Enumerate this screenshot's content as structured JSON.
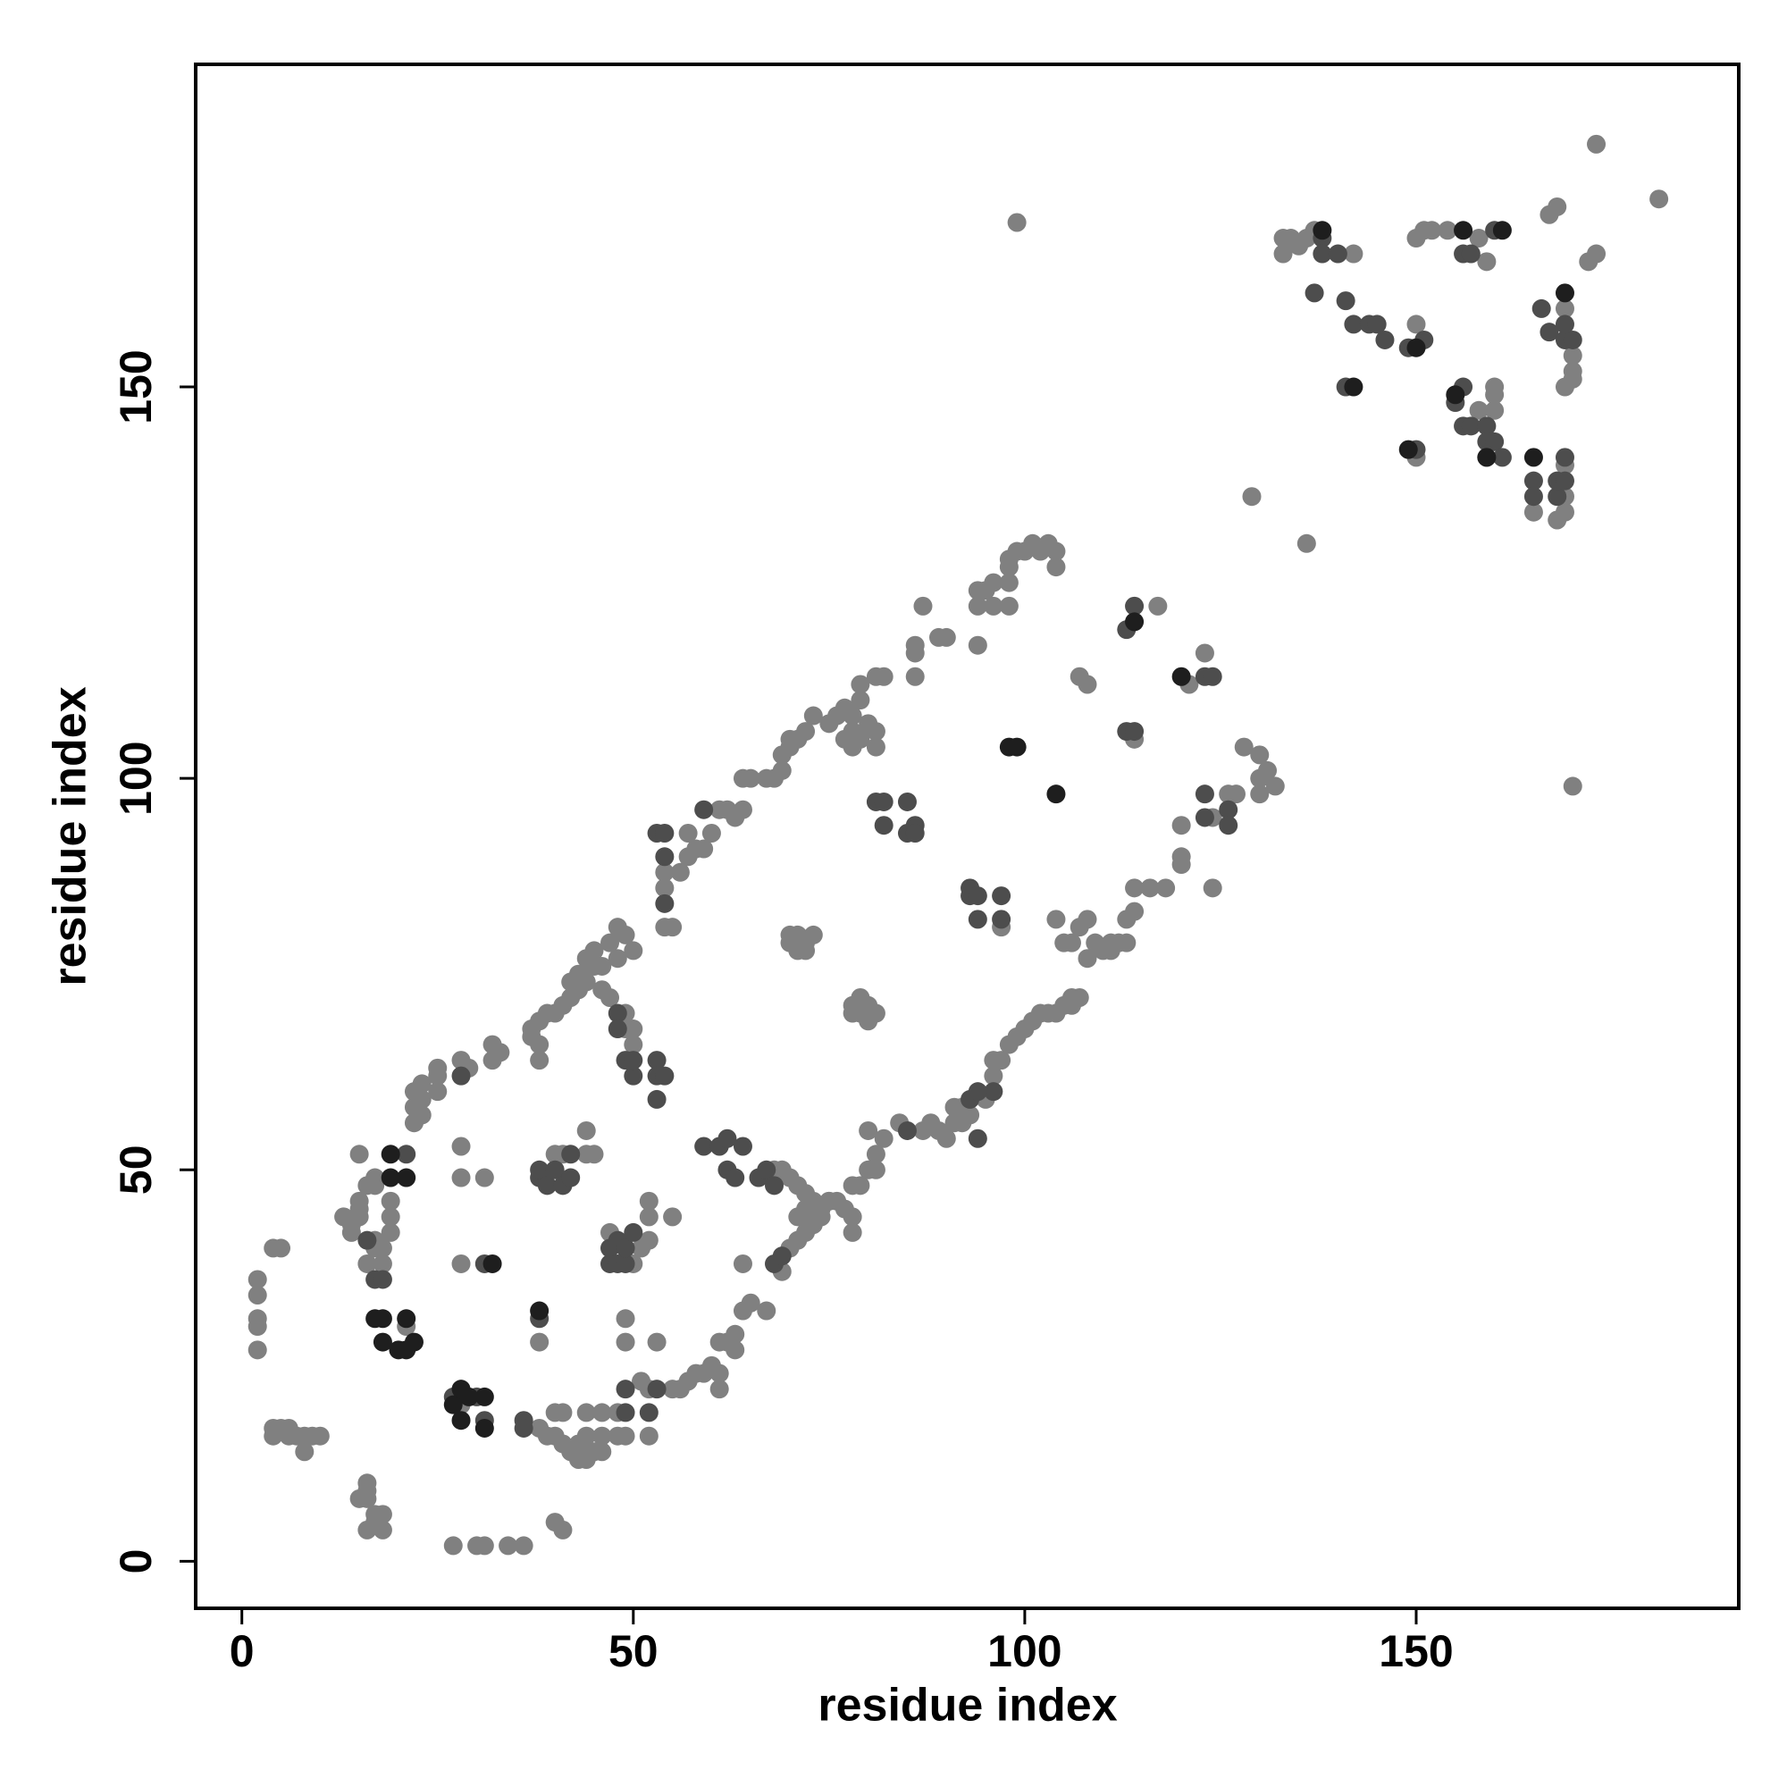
{
  "chart_data": {
    "type": "scatter",
    "xlabel": "residue index",
    "ylabel": "residue index",
    "xlim": [
      -5.9,
      191.2
    ],
    "ylim": [
      -6,
      191.2
    ],
    "xticks": [
      0,
      50,
      100,
      150
    ],
    "yticks": [
      0,
      50,
      100,
      150
    ],
    "series": [
      {
        "color": "#808080",
        "x": [
          2,
          2,
          2,
          2,
          2,
          4,
          5,
          4,
          4,
          5,
          6,
          6,
          7,
          8,
          8,
          9,
          10,
          15,
          16,
          16,
          16,
          16,
          17,
          17,
          18,
          18,
          27,
          30,
          31,
          34,
          36,
          40,
          41,
          13,
          14,
          14,
          15,
          15,
          15,
          16,
          17,
          17,
          18,
          18,
          19,
          19,
          19,
          17,
          16,
          17,
          15,
          21,
          22,
          22,
          22,
          23,
          23,
          23,
          25,
          25,
          25,
          28,
          29,
          32,
          32,
          33,
          28,
          28,
          31,
          28,
          28,
          38,
          39,
          40,
          40,
          41,
          41,
          42,
          43,
          43,
          44,
          44,
          44,
          45,
          46,
          46,
          46,
          48,
          48,
          49,
          52,
          52,
          53,
          51,
          38,
          40,
          41,
          44,
          45,
          44,
          49,
          49,
          47,
          50,
          51,
          52,
          52,
          52,
          55,
          37,
          37,
          38,
          38,
          38,
          39,
          40,
          41,
          42,
          42,
          43,
          43,
          44,
          44,
          45,
          45,
          46,
          46,
          47,
          48,
          48,
          49,
          50,
          47,
          49,
          49,
          50,
          50,
          54,
          54,
          55,
          54,
          56,
          57,
          57,
          58,
          59,
          60,
          61,
          62,
          63,
          64,
          64,
          65,
          67,
          68,
          69,
          69,
          70,
          70,
          71,
          72,
          55,
          56,
          57,
          58,
          59,
          60,
          61,
          61,
          61,
          62,
          63,
          63,
          64,
          65,
          67,
          64,
          69,
          70,
          71,
          72,
          73,
          74,
          74,
          75,
          76,
          77,
          78,
          78,
          78,
          79,
          80,
          81,
          81,
          80,
          68,
          69,
          70,
          71,
          72,
          71,
          72,
          73,
          75,
          70,
          71,
          71,
          72,
          73,
          72,
          70,
          78,
          79,
          79,
          80,
          80,
          81,
          78,
          73,
          75,
          76,
          77,
          78,
          78,
          79,
          79,
          80,
          81,
          82,
          81,
          81,
          86,
          86,
          86,
          87,
          89,
          90,
          94,
          94,
          94,
          95,
          96,
          96,
          98,
          98,
          98,
          99,
          100,
          101,
          102,
          103,
          104,
          104,
          98,
          77,
          78,
          79,
          87,
          88,
          89,
          90,
          91,
          91,
          92,
          92,
          93,
          95,
          96,
          96,
          97,
          98,
          99,
          100,
          101,
          102,
          103,
          104,
          105,
          106,
          106,
          107,
          84,
          82,
          97,
          104,
          105,
          106,
          107,
          108,
          109,
          108,
          110,
          111,
          111,
          112,
          113,
          114,
          114,
          113,
          107,
          108,
          117,
          114,
          121,
          123,
          116,
          118,
          120,
          120,
          120,
          124,
          124,
          126,
          127,
          128,
          130,
          130,
          130,
          131,
          132,
          129,
          136,
          99,
          170,
          173,
          181,
          133,
          133,
          134,
          135,
          136,
          137,
          142,
          150,
          150,
          151,
          152,
          154,
          158,
          159,
          158,
          160,
          160,
          160,
          159,
          165,
          169,
          169,
          169,
          168,
          169,
          170,
          170,
          170,
          169,
          167,
          168,
          172,
          173,
          150
        ],
        "y": [
          27,
          30,
          31,
          34,
          36,
          40,
          40,
          16,
          17,
          17,
          16,
          17,
          16,
          14,
          16,
          16,
          16,
          8,
          8,
          9,
          10,
          4,
          5,
          6,
          4,
          6,
          2,
          2,
          2,
          2,
          2,
          5,
          4,
          44,
          43,
          42,
          46,
          45,
          44,
          38,
          41,
          40,
          38,
          40,
          42,
          44,
          46,
          48,
          48,
          49,
          52,
          30,
          56,
          58,
          60,
          57,
          59,
          61,
          60,
          62,
          63,
          64,
          63,
          64,
          66,
          65,
          53,
          49,
          49,
          38,
          20,
          17,
          16,
          16,
          19,
          19,
          15,
          14,
          15,
          13,
          13,
          16,
          19,
          14,
          14,
          16,
          19,
          16,
          19,
          16,
          16,
          22,
          28,
          23,
          28,
          52,
          52,
          52,
          52,
          55,
          28,
          31,
          42,
          38,
          40,
          41,
          44,
          46,
          44,
          67,
          68,
          64,
          66,
          69,
          70,
          70,
          71,
          72,
          74,
          75,
          73,
          77,
          74,
          76,
          78,
          76,
          73,
          79,
          81,
          77,
          80,
          78,
          72,
          68,
          70,
          66,
          68,
          88,
          86,
          81,
          81,
          88,
          90,
          93,
          91,
          91,
          93,
          96,
          96,
          95,
          96,
          100,
          100,
          100,
          100,
          101,
          103,
          104,
          105,
          105,
          106,
          22,
          22,
          23,
          24,
          24,
          25,
          24,
          22,
          28,
          28,
          29,
          27,
          32,
          33,
          32,
          38,
          37,
          40,
          41,
          42,
          43,
          44,
          45,
          46,
          46,
          45,
          44,
          42,
          48,
          48,
          50,
          50,
          52,
          55,
          50,
          50,
          49,
          48,
          47,
          44,
          45,
          46,
          46,
          80,
          80,
          78,
          79,
          80,
          78,
          79,
          71,
          72,
          70,
          69,
          71,
          70,
          70,
          108,
          107,
          108,
          109,
          108,
          106,
          110,
          112,
          107,
          113,
          113,
          106,
          104,
          113,
          116,
          117,
          122,
          118,
          118,
          117,
          122,
          124,
          124,
          125,
          122,
          125,
          127,
          128,
          129,
          129,
          130,
          129,
          130,
          129,
          127,
          122,
          105,
          104,
          105,
          55,
          56,
          55,
          54,
          56,
          58,
          58,
          56,
          57,
          59,
          62,
          64,
          64,
          66,
          67,
          68,
          69,
          70,
          70,
          70,
          71,
          71,
          72,
          72,
          56,
          54,
          81,
          82,
          79,
          79,
          81,
          82,
          79,
          77,
          78,
          78,
          79,
          79,
          82,
          83,
          86,
          79,
          113,
          112,
          122,
          105,
          112,
          116,
          86,
          86,
          90,
          89,
          94,
          95,
          86,
          98,
          98,
          104,
          103,
          100,
          98,
          101,
          99,
          136,
          130,
          171,
          99,
          181,
          174,
          167,
          169,
          169,
          168,
          169,
          170,
          167,
          158,
          169,
          170,
          170,
          170,
          169,
          166,
          147,
          147,
          149,
          150,
          141,
          134,
          134,
          136,
          140,
          133,
          150,
          151,
          152,
          154,
          160,
          172,
          173,
          166,
          167,
          141
        ]
      },
      {
        "color": "#4d4d4d",
        "x": [
          16,
          17,
          18,
          21,
          28,
          31,
          27,
          30,
          31,
          36,
          36,
          38,
          38,
          38,
          39,
          40,
          41,
          42,
          42,
          47,
          47,
          48,
          48,
          49,
          49,
          50,
          49,
          52,
          53,
          49,
          48,
          48,
          49,
          50,
          50,
          53,
          53,
          54,
          53,
          54,
          54,
          53,
          54,
          59,
          59,
          61,
          62,
          62,
          63,
          64,
          66,
          67,
          68,
          69,
          68,
          81,
          82,
          82,
          85,
          85,
          86,
          86,
          93,
          93,
          94,
          94,
          97,
          97,
          93,
          94,
          96,
          94,
          85,
          114,
          113,
          113,
          114,
          123,
          124,
          126,
          126,
          123,
          123,
          138,
          138,
          140,
          137,
          141,
          142,
          144,
          145,
          146,
          149,
          151,
          141,
          150,
          156,
          157,
          160,
          156,
          156,
          157,
          159,
          159,
          160,
          161,
          165,
          165,
          166,
          167,
          168,
          168,
          169,
          169,
          169,
          170,
          169,
          155
        ],
        "y": [
          41,
          36,
          36,
          52,
          62,
          38,
          21,
          21,
          18,
          18,
          17,
          31,
          49,
          50,
          48,
          50,
          48,
          49,
          52,
          38,
          40,
          38,
          41,
          38,
          40,
          42,
          22,
          19,
          22,
          19,
          70,
          68,
          64,
          62,
          64,
          64,
          62,
          62,
          59,
          84,
          90,
          93,
          93,
          96,
          53,
          53,
          54,
          50,
          49,
          53,
          49,
          50,
          38,
          39,
          48,
          97,
          97,
          94,
          97,
          93,
          94,
          93,
          85,
          86,
          85,
          82,
          85,
          82,
          59,
          54,
          60,
          60,
          55,
          122,
          119,
          106,
          106,
          113,
          113,
          96,
          94,
          95,
          98,
          169,
          167,
          167,
          162,
          161,
          158,
          158,
          158,
          156,
          155,
          156,
          150,
          142,
          167,
          167,
          170,
          150,
          145,
          145,
          145,
          143,
          143,
          141,
          138,
          136,
          160,
          157,
          136,
          138,
          138,
          141,
          156,
          156,
          158,
          148
        ]
      },
      {
        "color": "#1e1e1e",
        "x": [
          17,
          18,
          18,
          20,
          21,
          21,
          22,
          27,
          28,
          28,
          29,
          31,
          31,
          32,
          38,
          19,
          19,
          21,
          98,
          99,
          104,
          120,
          114,
          155,
          156,
          159,
          169,
          138,
          142,
          150,
          149,
          161,
          165
        ],
        "y": [
          31,
          31,
          28,
          27,
          27,
          31,
          28,
          20,
          22,
          18,
          21,
          21,
          17,
          38,
          32,
          52,
          49,
          49,
          104,
          104,
          98,
          113,
          120,
          149,
          170,
          141,
          162,
          170,
          150,
          155,
          142,
          170,
          141
        ]
      }
    ]
  }
}
